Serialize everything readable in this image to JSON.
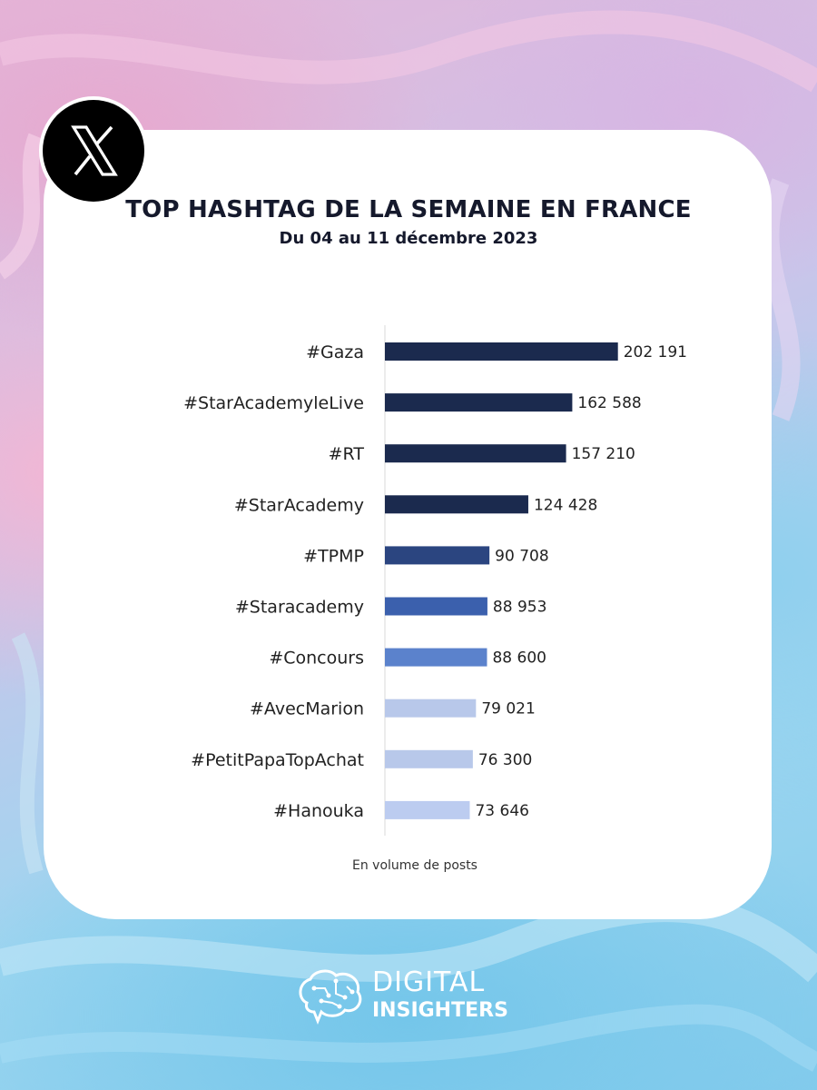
{
  "chart_data": {
    "type": "bar",
    "orientation": "horizontal",
    "title": "TOP HASHTAG DE LA SEMAINE EN FRANCE",
    "subtitle": "Du 04 au 11 décembre 2023",
    "categories": [
      "#Gaza",
      "#StarAcademyleLive",
      "#RT",
      "#StarAcademy",
      "#TPMP",
      "#Staracademy",
      "#Concours",
      "#AvecMarion",
      "#PetitPapaTopAchat",
      "#Hanouka"
    ],
    "values": [
      202191,
      162588,
      157210,
      124428,
      90708,
      88953,
      88600,
      79021,
      76300,
      73646
    ],
    "value_labels": [
      "202 191",
      "162 588",
      "157 210",
      "124 428",
      "90 708",
      "88 953",
      "88 600",
      "79 021",
      "76 300",
      "73 646"
    ],
    "bar_colors": [
      "#1b2a4e",
      "#1b2a4e",
      "#1b2a4e",
      "#1b2a4e",
      "#2b4580",
      "#3b60ad",
      "#5b82cc",
      "#b8c8ea",
      "#b8c8ea",
      "#bcccf0"
    ],
    "xlim": [
      0,
      230000
    ],
    "grid": false,
    "legend": "none"
  },
  "footnote": "En volume de posts",
  "logo": {
    "icon": "x-logo-icon",
    "name": "X"
  },
  "brand": {
    "line1": "DIGITAL",
    "line2": "INSIGHTERS",
    "icon": "brain-icon"
  }
}
